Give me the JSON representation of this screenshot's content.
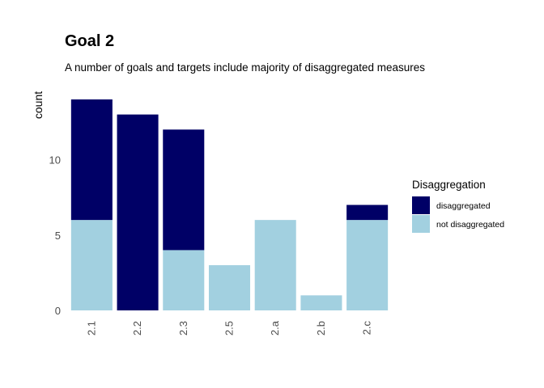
{
  "title": "Goal  2",
  "subtitle": "A number of goals and targets include majority of disaggregated measures",
  "colors": {
    "disaggregated": "#000066",
    "not_disaggregated": "#a2d0e0"
  },
  "legend": {
    "title": "Disaggregation",
    "items": [
      "disaggregated",
      "not disaggregated"
    ]
  },
  "chart_data": {
    "type": "bar",
    "stacked": true,
    "categories": [
      "2.1",
      "2.2",
      "2.3",
      "2.5",
      "2.a",
      "2.b",
      "2.c"
    ],
    "series": [
      {
        "name": "disaggregated",
        "values": [
          8,
          13,
          8,
          0,
          0,
          0,
          1
        ]
      },
      {
        "name": "not disaggregated",
        "values": [
          6,
          0,
          4,
          3,
          6,
          1,
          6
        ]
      }
    ],
    "xlabel": "",
    "ylabel": "count",
    "yticks": [
      0,
      5,
      10
    ],
    "ylim": [
      0,
      14
    ],
    "grid": false,
    "legend_position": "right"
  }
}
